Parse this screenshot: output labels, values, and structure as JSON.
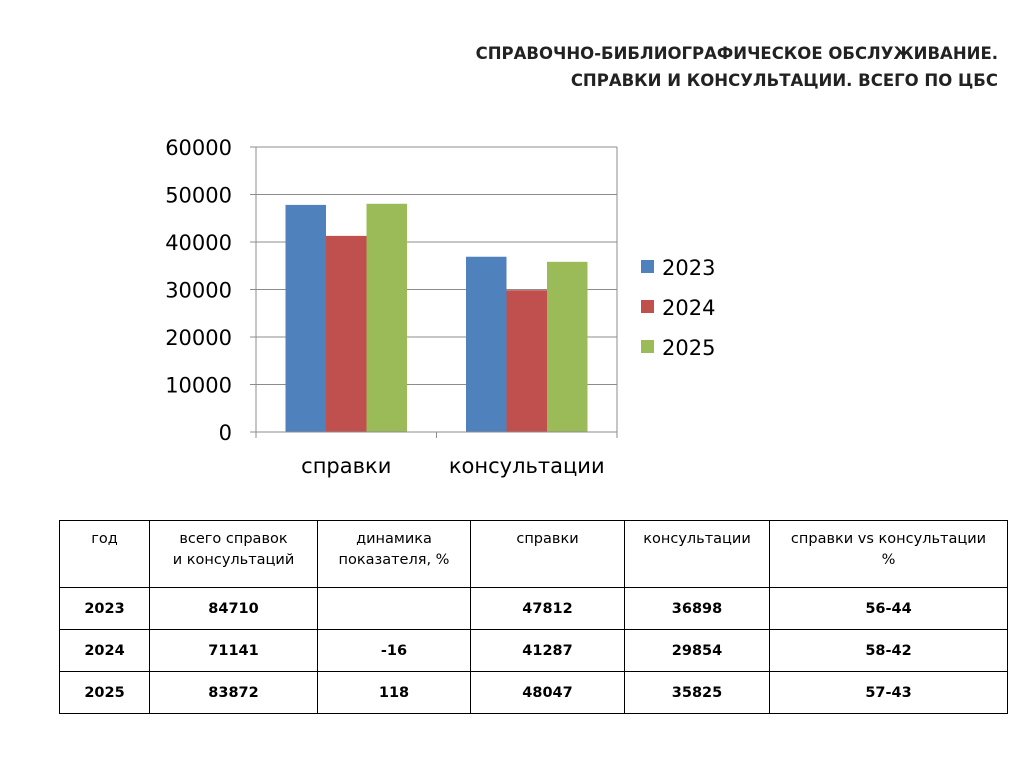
{
  "title_lines": [
    "СПРАВОЧНО-БИБЛИОГРАФИЧЕСКОЕ ОБСЛУЖИВАНИЕ.",
    "СПРАВКИ И КОНСУЛЬТАЦИИ. ВСЕГО ПО ЦБС"
  ],
  "chart_data": {
    "type": "bar",
    "categories": [
      "справки",
      "консультации"
    ],
    "series": [
      {
        "name": "2023",
        "values": [
          47812,
          36898
        ],
        "color": "#4f81bd"
      },
      {
        "name": "2024",
        "values": [
          41287,
          29854
        ],
        "color": "#c0504d"
      },
      {
        "name": "2025",
        "values": [
          48047,
          35825
        ],
        "color": "#9bbb59"
      }
    ],
    "ylim": [
      0,
      60000
    ],
    "yticks": [
      "0",
      "10000",
      "20000",
      "30000",
      "40000",
      "50000",
      "60000"
    ],
    "grid": true,
    "legend": "right"
  },
  "table": {
    "headers": [
      [
        "год"
      ],
      [
        "всего справок",
        "и консультаций"
      ],
      [
        "динамика",
        "показателя, %"
      ],
      [
        "справки"
      ],
      [
        "консультации"
      ],
      [
        "справки vs консультации",
        "%"
      ]
    ],
    "rows": [
      [
        "2023",
        "84710",
        "",
        "47812",
        "36898",
        "56-44"
      ],
      [
        "2024",
        "71141",
        "-16",
        "41287",
        "29854",
        "58-42"
      ],
      [
        "2025",
        "83872",
        "118",
        "48047",
        "35825",
        "57-43"
      ]
    ]
  }
}
